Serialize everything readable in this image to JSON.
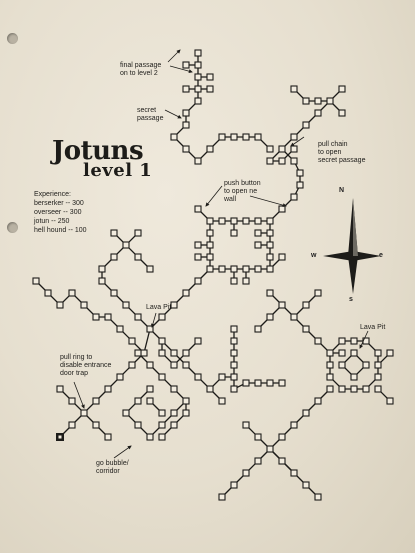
{
  "title": {
    "main": "Jotuns",
    "sub": "level 1"
  },
  "experience": {
    "heading": "Experience:",
    "entries": [
      {
        "monster": "berserker",
        "xp": "300"
      },
      {
        "monster": "overseer",
        "xp": "300"
      },
      {
        "monster": "jotun",
        "xp": "250"
      },
      {
        "monster": "hell hound",
        "xp": "100"
      }
    ]
  },
  "notes": {
    "final_passage": "final passage\non to level 2",
    "secret_passage": "secret\npassage",
    "pull_chain": "pull chain\nto open\nsecret passage",
    "push_button": "push button\nto open ne\nwall",
    "lava_pit_center": "Lava Pit",
    "lava_pit_right": "Lava Pit",
    "pull_ring": "pull ring to\ndisable entrance\ndoor trap",
    "go_bubble": "go bubble/\ncorridor"
  },
  "compass": {
    "north": "N",
    "south": "s",
    "east": "e",
    "west": "w"
  },
  "colors": {
    "paper": "#e9e2d3",
    "ink": "#1d1c19"
  }
}
